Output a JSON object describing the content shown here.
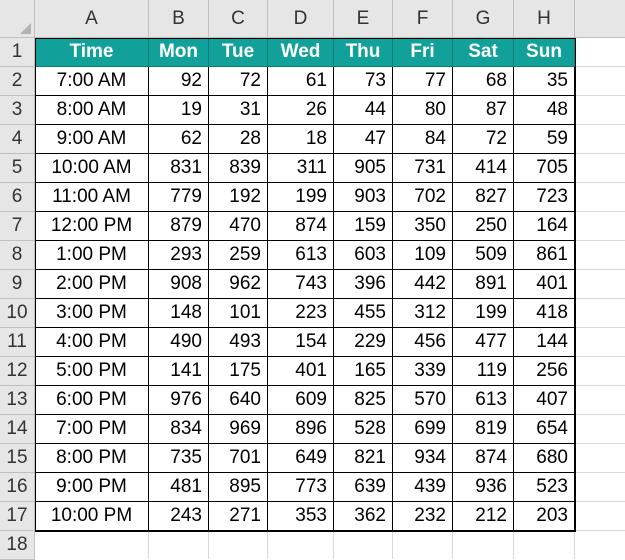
{
  "columns": [
    "A",
    "B",
    "C",
    "D",
    "E",
    "F",
    "G",
    "H"
  ],
  "rows": [
    "1",
    "2",
    "3",
    "4",
    "5",
    "6",
    "7",
    "8",
    "9",
    "10",
    "11",
    "12",
    "13",
    "14",
    "15",
    "16",
    "17",
    "18"
  ],
  "table": {
    "headers": [
      "Time",
      "Mon",
      "Tue",
      "Wed",
      "Thu",
      "Fri",
      "Sat",
      "Sun"
    ],
    "data": [
      [
        "7:00 AM",
        "92",
        "72",
        "61",
        "73",
        "77",
        "68",
        "35"
      ],
      [
        "8:00 AM",
        "19",
        "31",
        "26",
        "44",
        "80",
        "87",
        "48"
      ],
      [
        "9:00 AM",
        "62",
        "28",
        "18",
        "47",
        "84",
        "72",
        "59"
      ],
      [
        "10:00 AM",
        "831",
        "839",
        "311",
        "905",
        "731",
        "414",
        "705"
      ],
      [
        "11:00 AM",
        "779",
        "192",
        "199",
        "903",
        "702",
        "827",
        "723"
      ],
      [
        "12:00 PM",
        "879",
        "470",
        "874",
        "159",
        "350",
        "250",
        "164"
      ],
      [
        "1:00 PM",
        "293",
        "259",
        "613",
        "603",
        "109",
        "509",
        "861"
      ],
      [
        "2:00 PM",
        "908",
        "962",
        "743",
        "396",
        "442",
        "891",
        "401"
      ],
      [
        "3:00 PM",
        "148",
        "101",
        "223",
        "455",
        "312",
        "199",
        "418"
      ],
      [
        "4:00 PM",
        "490",
        "493",
        "154",
        "229",
        "456",
        "477",
        "144"
      ],
      [
        "5:00 PM",
        "141",
        "175",
        "401",
        "165",
        "339",
        "119",
        "256"
      ],
      [
        "6:00 PM",
        "976",
        "640",
        "609",
        "825",
        "570",
        "613",
        "407"
      ],
      [
        "7:00 PM",
        "834",
        "969",
        "896",
        "528",
        "699",
        "819",
        "654"
      ],
      [
        "8:00 PM",
        "735",
        "701",
        "649",
        "821",
        "934",
        "874",
        "680"
      ],
      [
        "9:00 PM",
        "481",
        "895",
        "773",
        "639",
        "439",
        "936",
        "523"
      ],
      [
        "10:00 PM",
        "243",
        "271",
        "353",
        "362",
        "232",
        "212",
        "203"
      ]
    ]
  },
  "colors": {
    "header_fill": "#12a19a",
    "header_text": "#ffffff",
    "chrome_fill": "#e6e6e6"
  }
}
